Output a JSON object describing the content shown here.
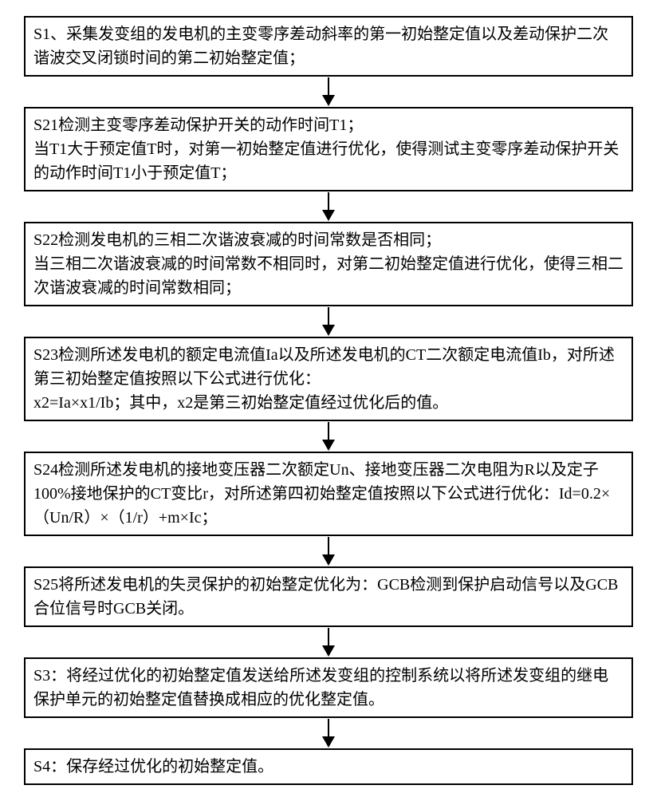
{
  "flowchart": {
    "type": "flowchart",
    "background_color": "#ffffff",
    "box_border_color": "#000000",
    "box_border_width": 2,
    "arrow_color": "#000000",
    "font_size": 20,
    "font_family": "SimSun",
    "text_color": "#000000",
    "nodes": [
      {
        "id": "s1",
        "text": "S1、采集发变组的发电机的主变零序差动斜率的第一初始整定值以及差动保护二次谐波交叉闭锁时间的第二初始整定值；"
      },
      {
        "id": "s21",
        "text": "S21检测主变零序差动保护开关的动作时间T1；\n当T1大于预定值T时，对第一初始整定值进行优化，使得测试主变零序差动保护开关的动作时间T1小于预定值T；"
      },
      {
        "id": "s22",
        "text": "S22检测发电机的三相二次谐波衰减的时间常数是否相同；\n当三相二次谐波衰减的时间常数不相同时，对第二初始整定值进行优化，使得三相二次谐波衰减的时间常数相同；"
      },
      {
        "id": "s23",
        "text": "S23检测所述发电机的额定电流值Ia以及所述发电机的CT二次额定电流值Ib，对所述第三初始整定值按照以下公式进行优化：\nx2=Ia×x1/Ib；其中，x2是第三初始整定值经过优化后的值。"
      },
      {
        "id": "s24",
        "text": "S24检测所述发电机的接地变压器二次额定Un、接地变压器二次电阻为R以及定子100%接地保护的CT变比r，对所述第四初始整定值按照以下公式进行优化：Id=0.2×（Un/R）×（1/r）+m×Ic；"
      },
      {
        "id": "s25",
        "text": "S25将所述发电机的失灵保护的初始整定优化为：GCB检测到保护启动信号以及GCB合位信号时GCB关闭。"
      },
      {
        "id": "s3",
        "text": "S3：将经过优化的初始整定值发送给所述发变组的控制系统以将所述发变组的继电保护单元的初始整定值替换成相应的优化整定值。"
      },
      {
        "id": "s4",
        "text": "S4：保存经过优化的初始整定值。"
      }
    ],
    "edges": [
      {
        "from": "s1",
        "to": "s21"
      },
      {
        "from": "s21",
        "to": "s22"
      },
      {
        "from": "s22",
        "to": "s23"
      },
      {
        "from": "s23",
        "to": "s24"
      },
      {
        "from": "s24",
        "to": "s25"
      },
      {
        "from": "s25",
        "to": "s3"
      },
      {
        "from": "s3",
        "to": "s4"
      }
    ]
  }
}
